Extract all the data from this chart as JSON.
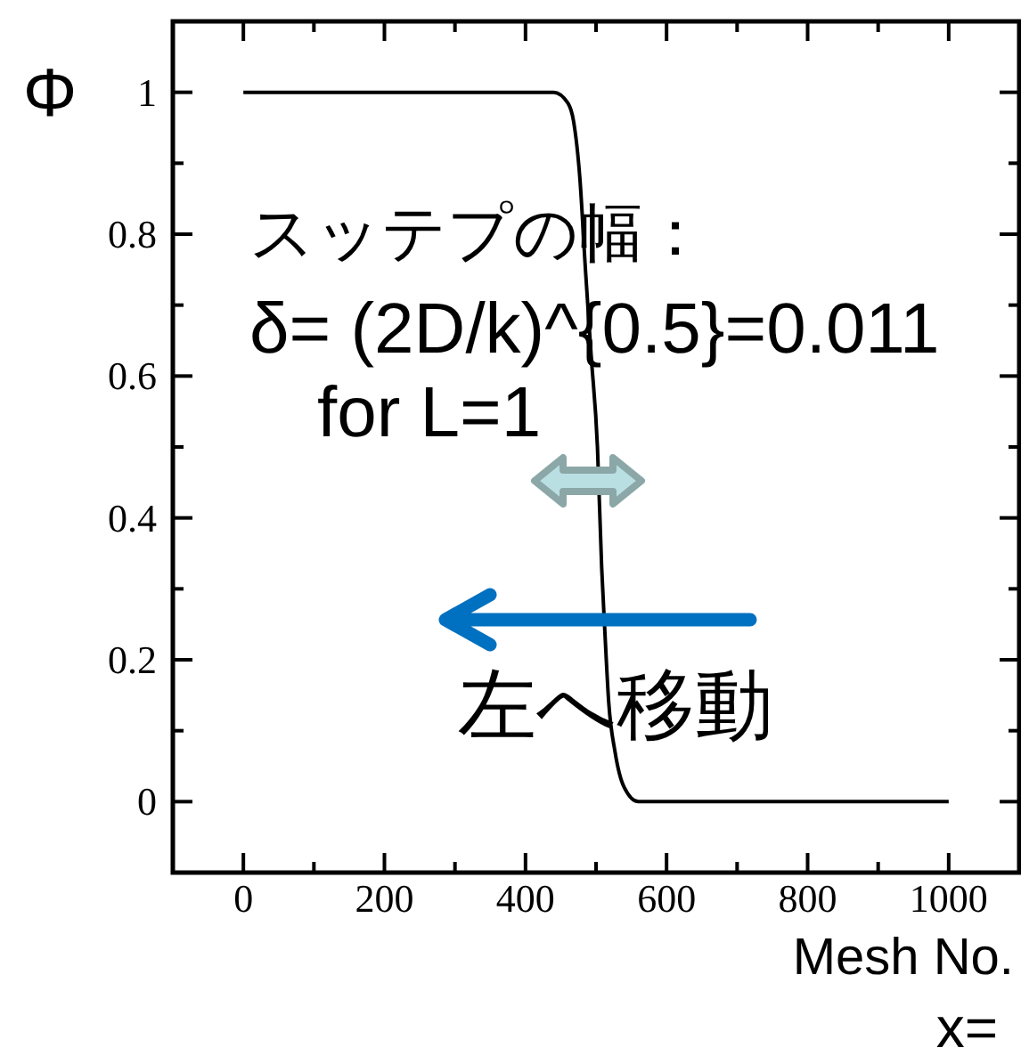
{
  "chart_data": {
    "type": "line",
    "xlabel": "Mesh No.",
    "ylabel": "Φ",
    "annotations": [
      "スッテプの幅：",
      "δ= (2D/k)^{0.5}=0.011",
      "for L=1",
      "左へ移動",
      "x="
    ],
    "x": [
      0,
      400,
      440,
      460,
      468,
      477,
      485,
      493,
      502,
      508,
      512,
      518,
      527,
      540,
      560,
      600,
      1000
    ],
    "values": [
      1,
      1,
      1,
      0.985,
      0.96,
      0.88,
      0.75,
      0.63,
      0.5,
      0.33,
      0.25,
      0.14,
      0.07,
      0.02,
      0,
      0,
      0
    ],
    "color": "#000000",
    "xlim": [
      -100,
      1100
    ],
    "xticks": [
      0,
      {
        "value": 100,
        "label": null
      },
      200,
      {
        "value": 300,
        "label": null
      },
      400,
      {
        "value": 500,
        "label": null
      },
      600,
      {
        "value": 700,
        "label": null
      },
      800,
      {
        "value": 900,
        "label": null
      },
      1000
    ],
    "ylim": [
      -0.1,
      1.1
    ],
    "yticks": [
      0,
      {
        "value": 0.1,
        "label": null
      },
      0.2,
      {
        "value": 0.3,
        "label": null
      },
      0.4,
      {
        "value": 0.5,
        "label": null
      },
      0.6,
      {
        "value": 0.7,
        "label": null
      },
      0.8,
      {
        "value": 0.9,
        "label": null
      },
      1
    ]
  }
}
